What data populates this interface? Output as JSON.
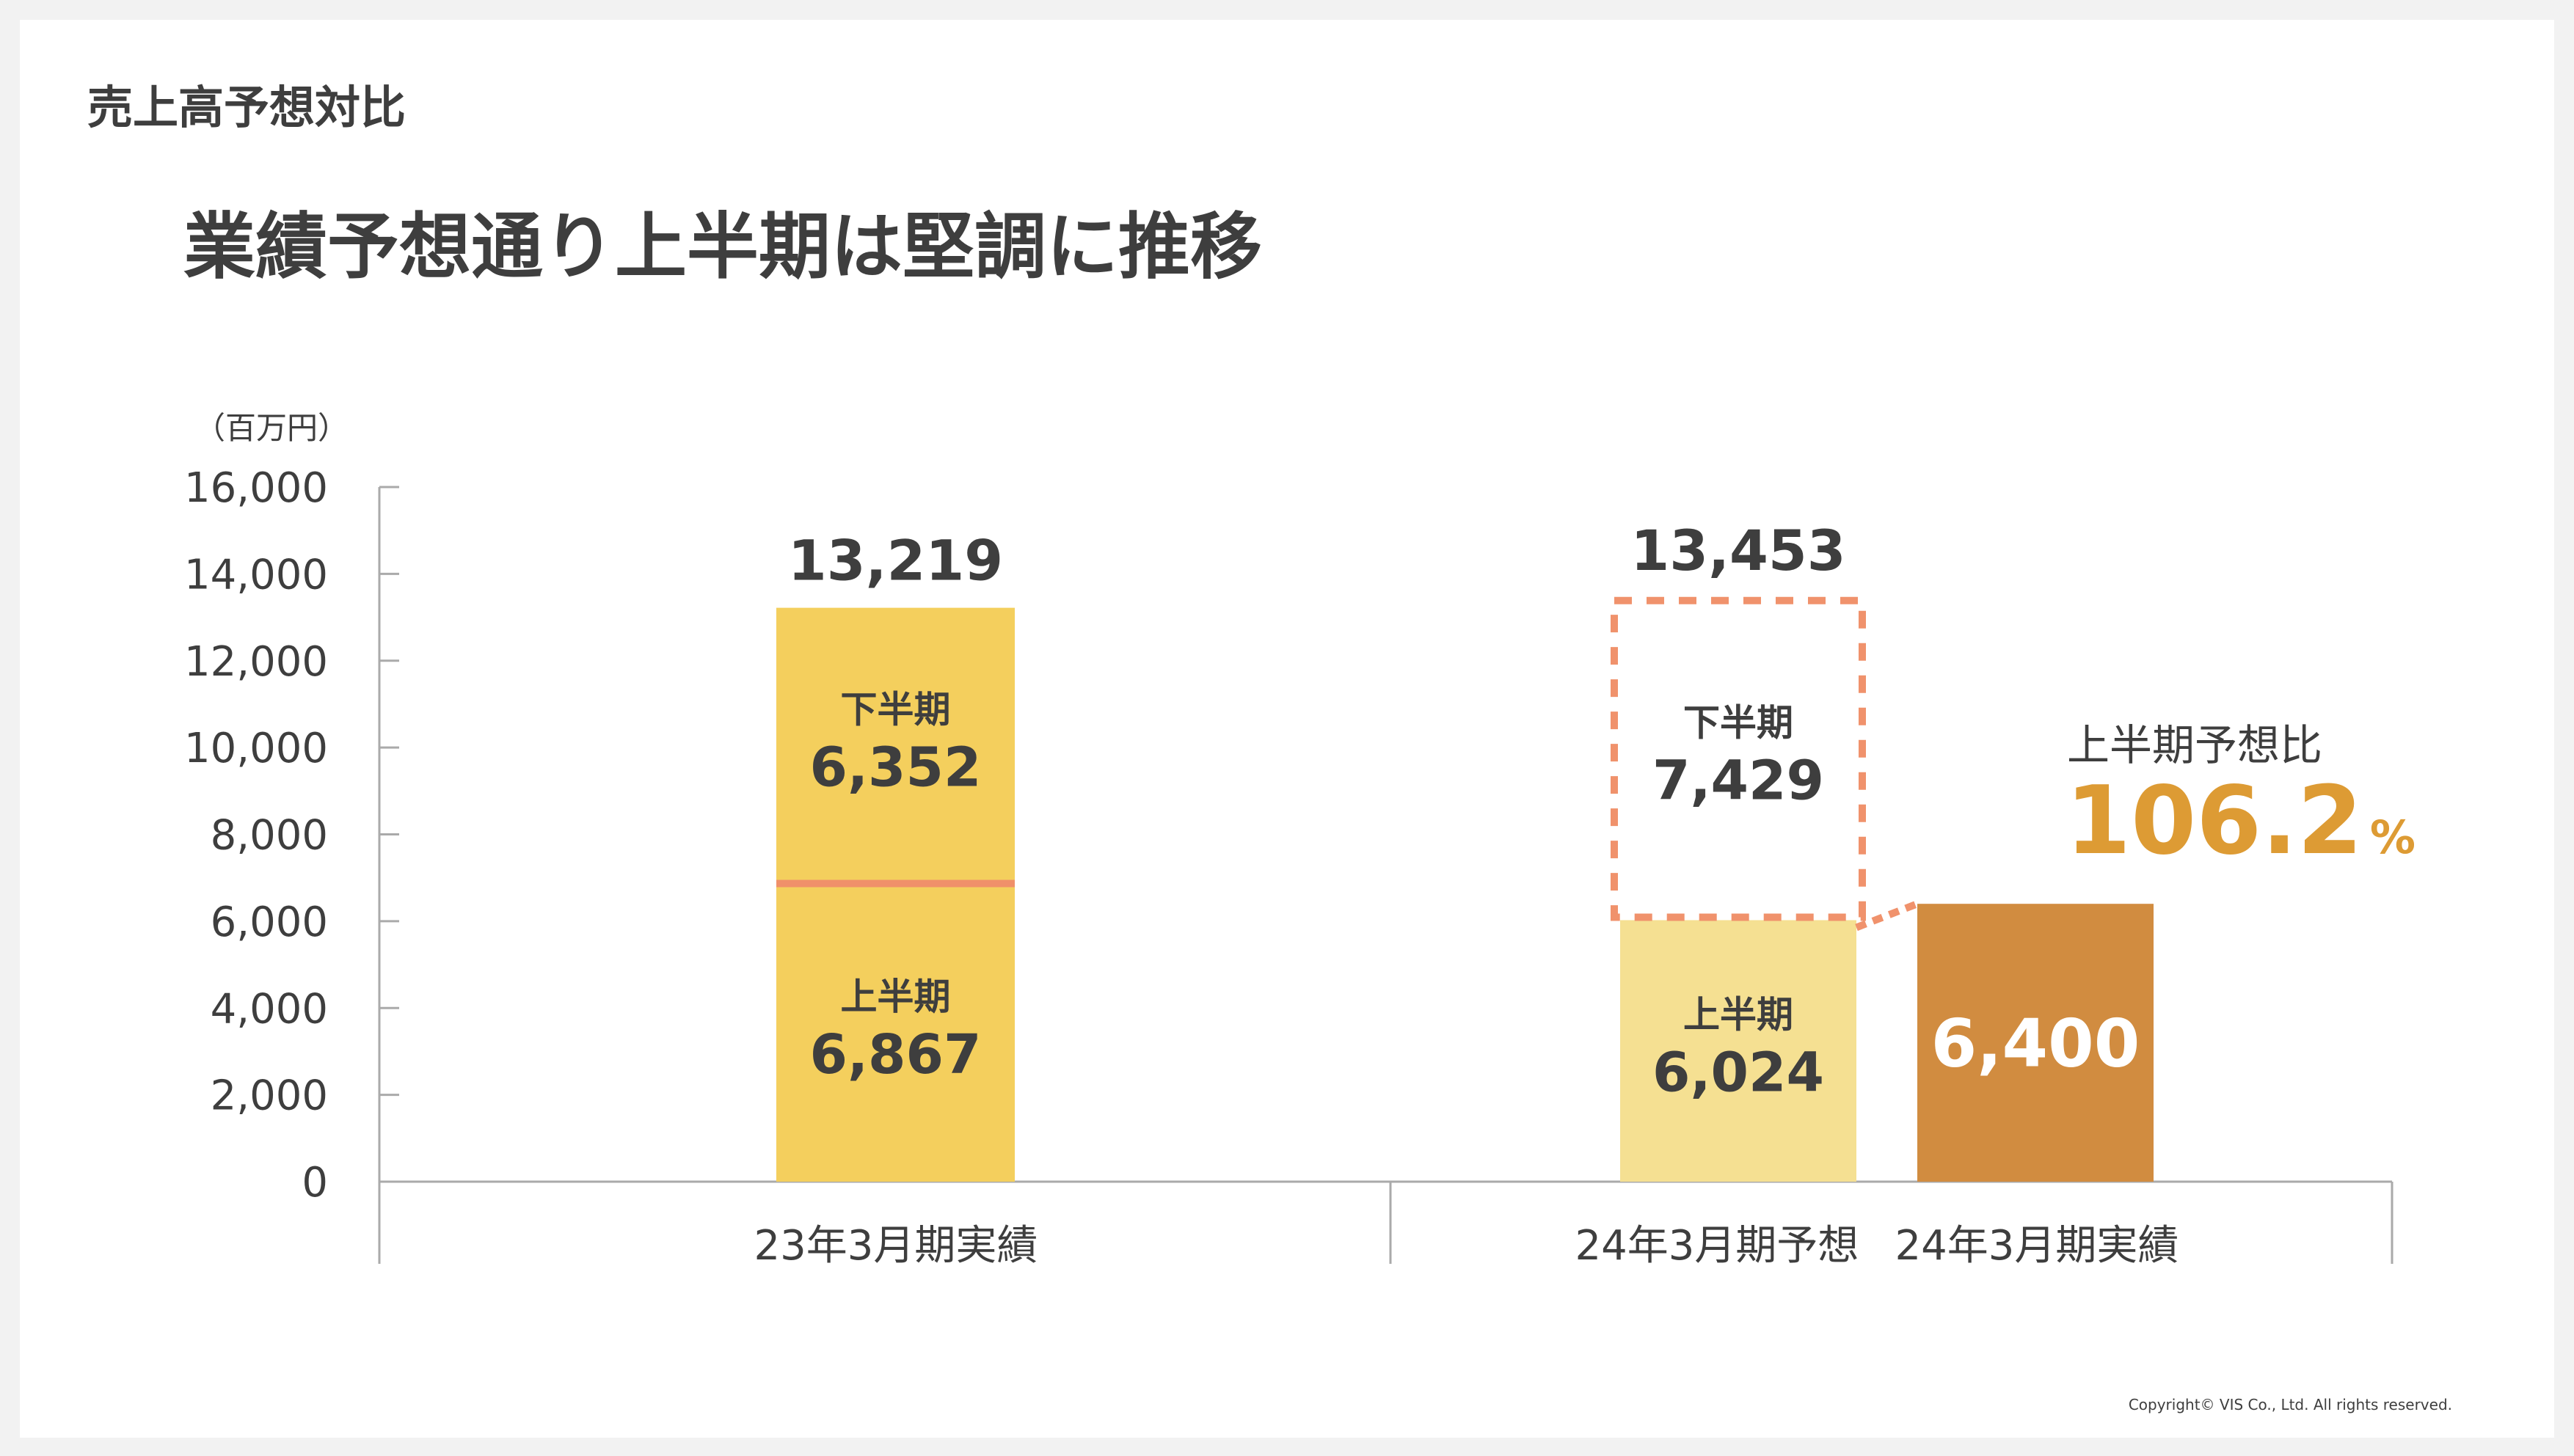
{
  "header": {
    "section_label": "売上高予想対比",
    "headline": "業績予想通り上半期は堅調に推移"
  },
  "chart_data": {
    "type": "bar",
    "stacked": true,
    "unit_label": "（百万円）",
    "ylim": [
      0,
      16000
    ],
    "yticks": [
      0,
      2000,
      4000,
      6000,
      8000,
      10000,
      12000,
      14000,
      16000
    ],
    "ytick_labels": [
      "0",
      "2,000",
      "4,000",
      "6,000",
      "8,000",
      "10,000",
      "12,000",
      "14,000",
      "16,000"
    ],
    "categories": [
      "23年3月期実績",
      "24年3月期予想",
      "24年3月期実績"
    ],
    "bars": [
      {
        "category": "23年3月期実績",
        "total": 13219,
        "total_label": "13,219",
        "segments": [
          {
            "name": "上半期",
            "value": 6867,
            "label": "6,867",
            "color": "#f4cf5d"
          },
          {
            "name": "下半期",
            "value": 6352,
            "label": "6,352",
            "color": "#f4cf5d"
          }
        ]
      },
      {
        "category": "24年3月期予想",
        "total": 13453,
        "total_label": "13,453",
        "segments": [
          {
            "name": "上半期",
            "value": 6024,
            "label": "6,024",
            "color": "#f5e092"
          },
          {
            "name": "下半期",
            "value": 7429,
            "label": "7,429",
            "style": "dashed-outline",
            "color": "#f0926c"
          }
        ]
      },
      {
        "category": "24年3月期実績",
        "segments": [
          {
            "name": "上半期",
            "value": 6400,
            "label": "6,400",
            "color": "#d18c40"
          }
        ]
      }
    ],
    "annotation": {
      "label": "上半期予想比",
      "value": "106.2",
      "unit": "%",
      "color": "#dd9b34"
    },
    "divider_color": "#f0906a",
    "grid": false
  },
  "footer": {
    "copyright": "Copyright© VIS Co., Ltd. All rights reserved."
  }
}
